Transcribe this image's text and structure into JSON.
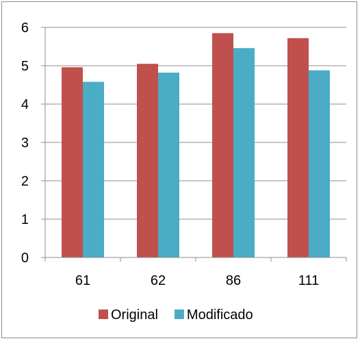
{
  "chart_data": {
    "type": "bar",
    "title": "",
    "xlabel": "",
    "ylabel": "",
    "categories": [
      "61",
      "62",
      "86",
      "111"
    ],
    "series": [
      {
        "name": "Original",
        "color": "#c0504d",
        "values": [
          4.96,
          5.05,
          5.85,
          5.72
        ]
      },
      {
        "name": "Modificado",
        "color": "#4bacc6",
        "values": [
          4.58,
          4.82,
          5.46,
          4.88
        ]
      }
    ],
    "ylim": [
      0,
      6
    ],
    "yticks": [
      "0",
      "1",
      "2",
      "3",
      "4",
      "5",
      "6"
    ],
    "grid": true,
    "legend_position": "bottom"
  }
}
